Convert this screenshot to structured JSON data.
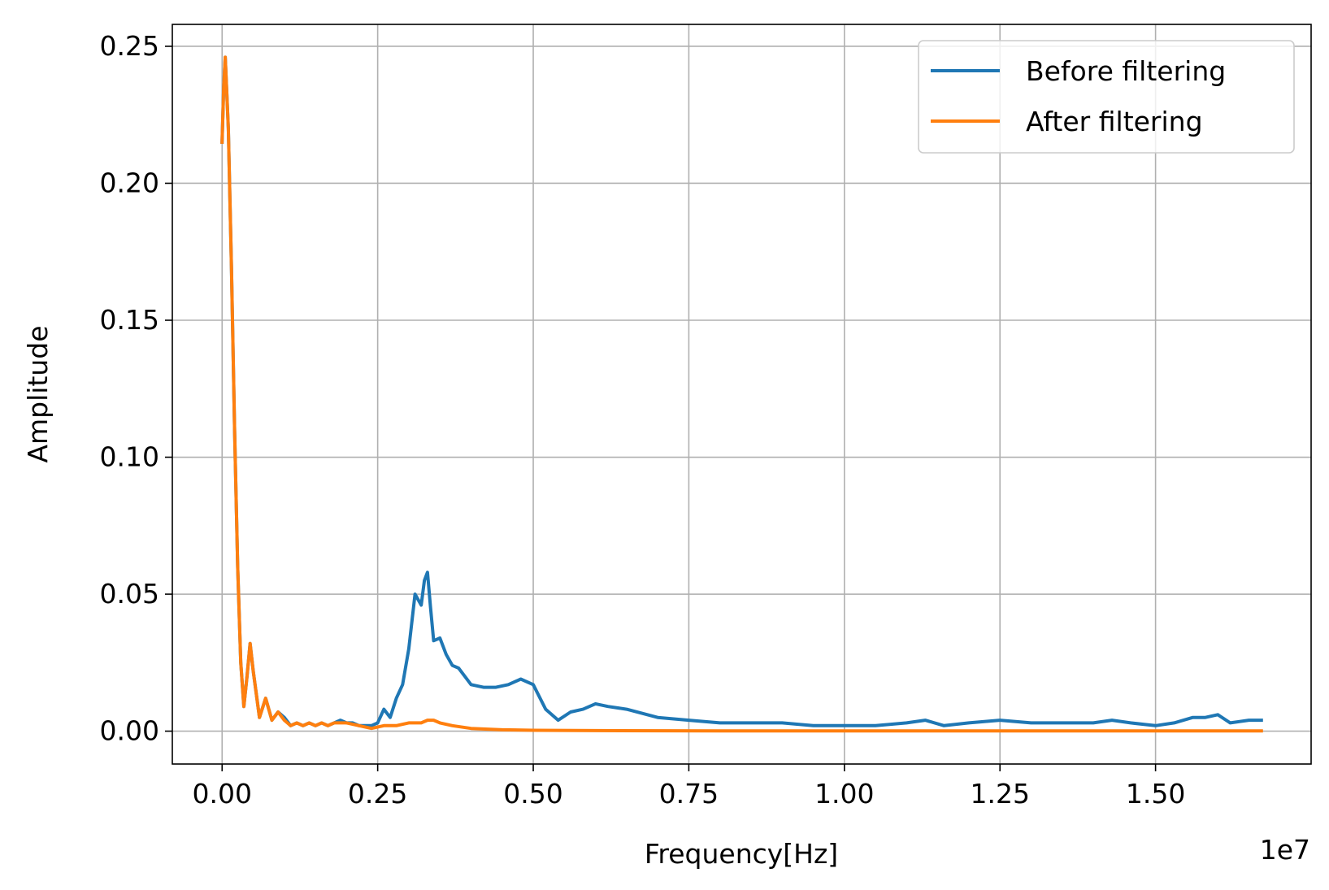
{
  "chart_data": {
    "type": "line",
    "title": "",
    "xlabel": "Frequency[Hz]",
    "ylabel": "Amplitude",
    "x_offset_label": "1e7",
    "xlim": [
      -0.08,
      1.75
    ],
    "ylim": [
      -0.012,
      0.258
    ],
    "x_scale_note": "x values in units of 1e7 Hz",
    "xticks": [
      {
        "value": 0.0,
        "label": "0.00"
      },
      {
        "value": 0.25,
        "label": "0.25"
      },
      {
        "value": 0.5,
        "label": "0.50"
      },
      {
        "value": 0.75,
        "label": "0.75"
      },
      {
        "value": 1.0,
        "label": "1.00"
      },
      {
        "value": 1.25,
        "label": "1.25"
      },
      {
        "value": 1.5,
        "label": "1.50"
      }
    ],
    "yticks": [
      {
        "value": 0.0,
        "label": "0.00"
      },
      {
        "value": 0.05,
        "label": "0.05"
      },
      {
        "value": 0.1,
        "label": "0.10"
      },
      {
        "value": 0.15,
        "label": "0.15"
      },
      {
        "value": 0.2,
        "label": "0.20"
      },
      {
        "value": 0.25,
        "label": "0.25"
      }
    ],
    "grid": true,
    "legend_position": "top-right",
    "series": [
      {
        "name": "Before filtering",
        "color": "#1f77b4",
        "x": [
          0.0,
          0.0025,
          0.005,
          0.01,
          0.015,
          0.02,
          0.025,
          0.03,
          0.035,
          0.04,
          0.045,
          0.05,
          0.06,
          0.07,
          0.08,
          0.09,
          0.1,
          0.11,
          0.12,
          0.13,
          0.14,
          0.15,
          0.16,
          0.17,
          0.18,
          0.19,
          0.2,
          0.21,
          0.22,
          0.23,
          0.24,
          0.25,
          0.26,
          0.27,
          0.28,
          0.29,
          0.3,
          0.31,
          0.32,
          0.325,
          0.33,
          0.335,
          0.34,
          0.35,
          0.36,
          0.37,
          0.38,
          0.39,
          0.4,
          0.42,
          0.44,
          0.46,
          0.48,
          0.5,
          0.52,
          0.54,
          0.56,
          0.58,
          0.6,
          0.62,
          0.65,
          0.7,
          0.75,
          0.8,
          0.85,
          0.9,
          0.95,
          1.0,
          1.05,
          1.1,
          1.13,
          1.16,
          1.2,
          1.25,
          1.3,
          1.35,
          1.4,
          1.43,
          1.46,
          1.5,
          1.53,
          1.56,
          1.58,
          1.6,
          1.62,
          1.65,
          1.67
        ],
        "y": [
          0.215,
          0.235,
          0.246,
          0.22,
          0.17,
          0.11,
          0.06,
          0.025,
          0.009,
          0.02,
          0.032,
          0.022,
          0.005,
          0.012,
          0.004,
          0.007,
          0.005,
          0.002,
          0.003,
          0.002,
          0.003,
          0.002,
          0.003,
          0.002,
          0.003,
          0.004,
          0.003,
          0.003,
          0.002,
          0.002,
          0.002,
          0.003,
          0.008,
          0.005,
          0.012,
          0.017,
          0.03,
          0.05,
          0.046,
          0.055,
          0.058,
          0.045,
          0.033,
          0.034,
          0.028,
          0.024,
          0.023,
          0.02,
          0.017,
          0.016,
          0.016,
          0.017,
          0.019,
          0.017,
          0.008,
          0.004,
          0.007,
          0.008,
          0.01,
          0.009,
          0.008,
          0.005,
          0.004,
          0.003,
          0.003,
          0.003,
          0.002,
          0.002,
          0.002,
          0.003,
          0.004,
          0.002,
          0.003,
          0.004,
          0.003,
          0.003,
          0.003,
          0.004,
          0.003,
          0.002,
          0.003,
          0.005,
          0.005,
          0.006,
          0.003,
          0.004,
          0.004
        ]
      },
      {
        "name": "After filtering",
        "color": "#ff7f0e",
        "x": [
          0.0,
          0.0025,
          0.005,
          0.01,
          0.015,
          0.02,
          0.025,
          0.03,
          0.035,
          0.04,
          0.045,
          0.05,
          0.06,
          0.07,
          0.08,
          0.09,
          0.1,
          0.11,
          0.12,
          0.13,
          0.14,
          0.15,
          0.16,
          0.17,
          0.18,
          0.2,
          0.22,
          0.24,
          0.26,
          0.28,
          0.3,
          0.32,
          0.33,
          0.34,
          0.35,
          0.37,
          0.4,
          0.45,
          0.5,
          0.6,
          0.8,
          1.0,
          1.2,
          1.4,
          1.6,
          1.67
        ],
        "y": [
          0.215,
          0.235,
          0.246,
          0.22,
          0.17,
          0.11,
          0.06,
          0.025,
          0.009,
          0.02,
          0.032,
          0.022,
          0.005,
          0.012,
          0.004,
          0.007,
          0.004,
          0.002,
          0.003,
          0.002,
          0.003,
          0.002,
          0.003,
          0.002,
          0.003,
          0.003,
          0.002,
          0.001,
          0.002,
          0.002,
          0.003,
          0.003,
          0.004,
          0.004,
          0.003,
          0.002,
          0.001,
          0.0005,
          0.0003,
          0.0002,
          0.0001,
          0.0001,
          0.0001,
          0.0001,
          0.0001,
          0.0001
        ]
      }
    ]
  }
}
